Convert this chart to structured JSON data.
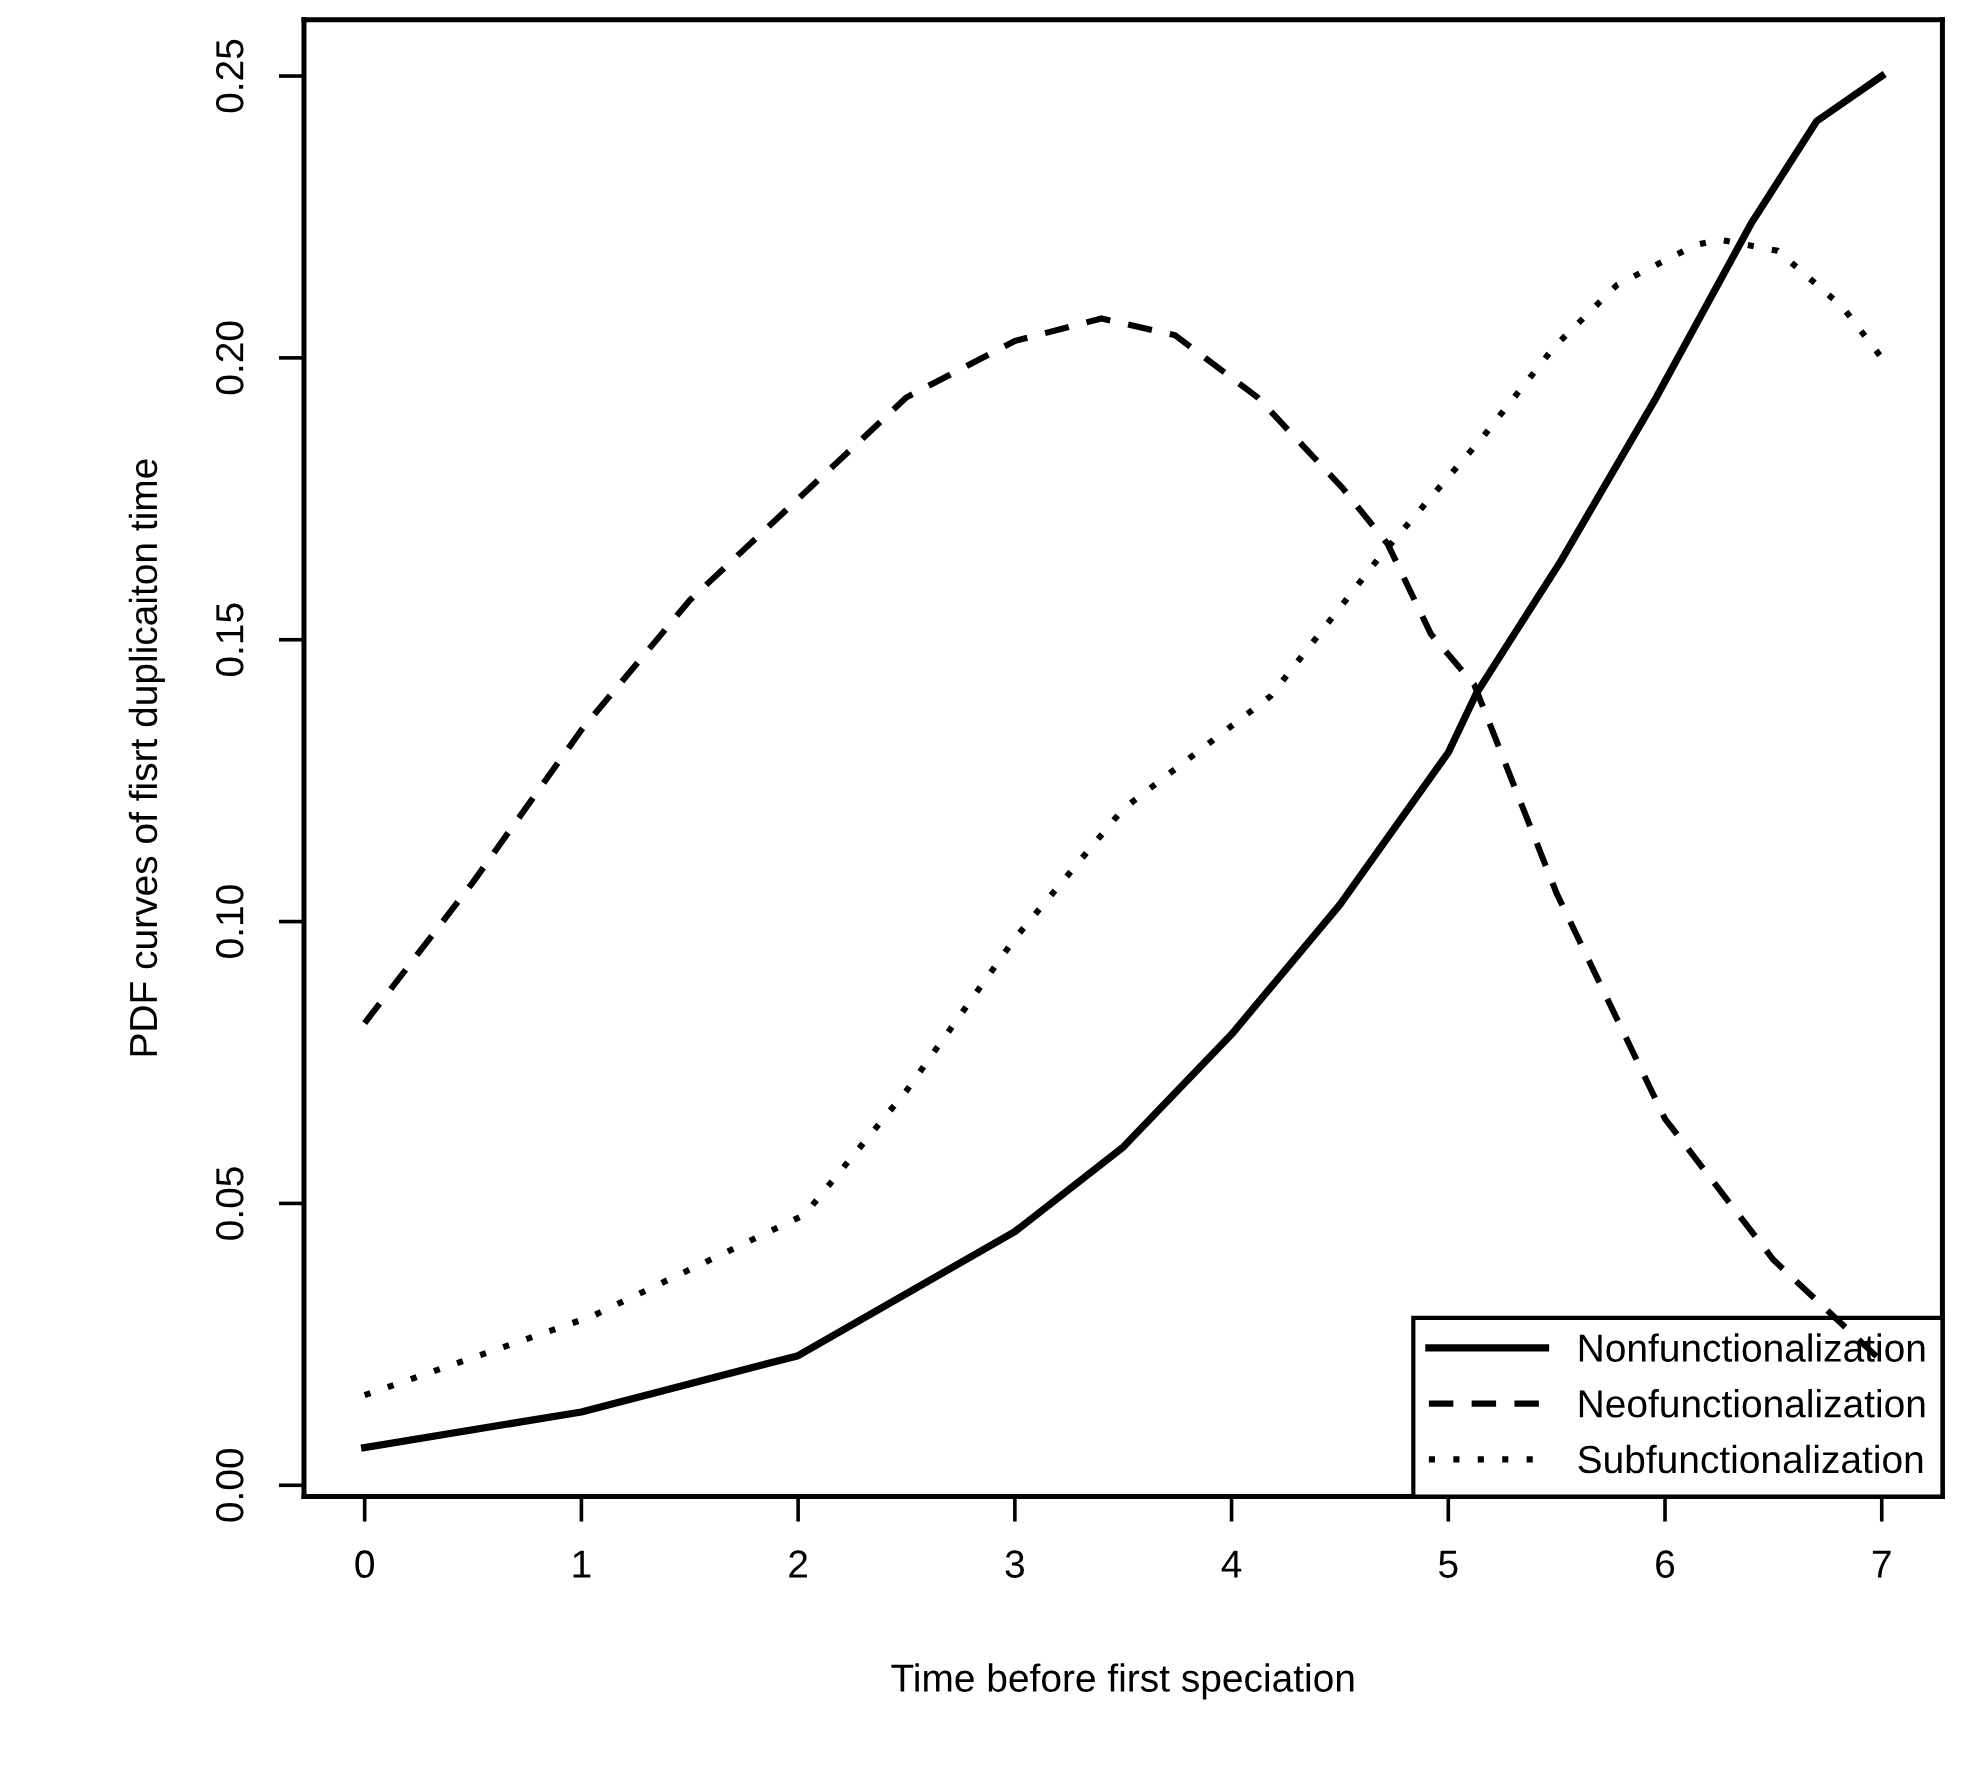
{
  "chart_data": {
    "type": "line",
    "xlabel": "Time before first speciation",
    "ylabel": "PDF curves of fisrt duplicaiton time",
    "xlim": [
      -0.28,
      7.28
    ],
    "ylim": [
      -0.002,
      0.26
    ],
    "xticks": [
      0,
      1,
      2,
      3,
      4,
      5,
      6,
      7
    ],
    "yticks": [
      {
        "value": 0,
        "label": "0.00"
      },
      {
        "value": 0.05,
        "label": "0.05"
      },
      {
        "value": 0.1,
        "label": "0.10"
      },
      {
        "value": 0.15,
        "label": "0.15"
      },
      {
        "value": 0.2,
        "label": "0.20"
      },
      {
        "value": 0.25,
        "label": "0.25"
      }
    ],
    "grid": false,
    "legend": "bottom right",
    "marker": "none",
    "series": [
      {
        "name": "Nonfunctionalization",
        "color": "#000000",
        "line_style": "solid",
        "x": [
          0,
          1,
          2,
          3,
          3.5,
          4,
          4.5,
          5,
          5.13,
          5.52,
          5.96,
          6.4,
          6.7,
          7
        ],
        "values": [
          0.0067,
          0.013,
          0.023,
          0.045,
          0.06,
          0.08,
          0.103,
          0.13,
          0.1405,
          0.164,
          0.193,
          0.224,
          0.242,
          0.25
        ]
      },
      {
        "name": "Neofunctionalization",
        "color": "#000000",
        "line_style": "dashed",
        "x": [
          0,
          0.5,
          1,
          1.5,
          2,
          2.5,
          3,
          3.4,
          3.74,
          4.12,
          4.51,
          4.72,
          4.92,
          5.12,
          5.5,
          6,
          6.5,
          7
        ],
        "values": [
          0.082,
          0.107,
          0.134,
          0.157,
          0.175,
          0.193,
          0.203,
          0.207,
          0.204,
          0.193,
          0.177,
          0.167,
          0.151,
          0.142,
          0.105,
          0.065,
          0.04,
          0.022
        ]
      },
      {
        "name": "Subfunctionalization",
        "color": "#000000",
        "line_style": "dotted",
        "x": [
          0,
          1.05,
          2.03,
          2.5,
          3,
          3.5,
          4.18,
          4.69,
          5.16,
          5.49,
          5.78,
          6.14,
          6.25,
          6.52,
          6.82,
          7
        ],
        "values": [
          0.016,
          0.03,
          0.048,
          0.07,
          0.097,
          0.12,
          0.14,
          0.165,
          0.186,
          0.202,
          0.213,
          0.22,
          0.221,
          0.219,
          0.209,
          0.2
        ]
      }
    ]
  }
}
